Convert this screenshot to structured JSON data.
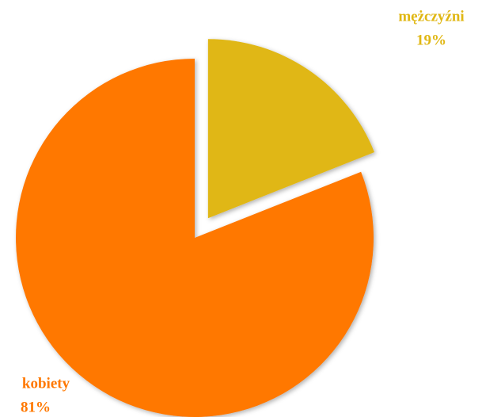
{
  "chart_data": {
    "type": "pie",
    "categories": [
      "mężczyźni",
      "kobiety"
    ],
    "values": [
      19,
      81
    ],
    "value_labels": [
      "19%",
      "81%"
    ],
    "colors": [
      "#e0b713",
      "#ff7800"
    ],
    "exploded": [
      true,
      false
    ]
  }
}
